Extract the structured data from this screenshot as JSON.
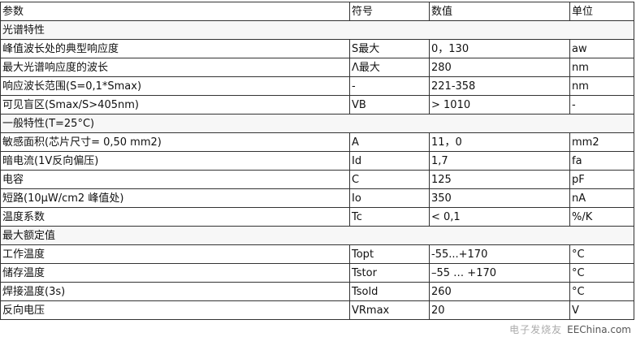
{
  "header": [
    "参数",
    "符号",
    "数值",
    "单位"
  ],
  "rows": [
    {
      "section": "光谱特性"
    },
    {
      "cells": [
        "峰值波长处的典型响应度",
        "S最大",
        "0，130",
        "aw"
      ]
    },
    {
      "cells": [
        "最大光谱响应度的波长",
        "Λ最大",
        "280",
        "nm"
      ]
    },
    {
      "cells": [
        "响应波长范围(S=0,1*Smax)",
        "-",
        "221-358",
        "nm"
      ]
    },
    {
      "cells": [
        "可见盲区(Smax/S>405nm)",
        "VB",
        "> 1010",
        "-"
      ]
    },
    {
      "section": "一般特性(T=25°C)"
    },
    {
      "cells": [
        "敏感面积(芯片尺寸= 0,50 mm2)",
        "A",
        "11，0",
        "mm2"
      ]
    },
    {
      "cells": [
        "暗电流(1V反向偏压)",
        "Id",
        "1,7",
        "fa"
      ]
    },
    {
      "cells": [
        "电容",
        "C",
        "125",
        "pF"
      ]
    },
    {
      "cells": [
        "短路(10μW/cm2 峰值处)",
        "Io",
        "350",
        "nA"
      ]
    },
    {
      "cells": [
        "温度系数",
        "Tc",
        "< 0,1",
        "%/K"
      ]
    },
    {
      "section": "最大额定值"
    },
    {
      "cells": [
        "工作温度",
        "Topt",
        "-55...+170",
        "°C"
      ]
    },
    {
      "cells": [
        "储存温度",
        "Tstor",
        "–55 … +170",
        "°C"
      ]
    },
    {
      "cells": [
        "焊接温度(3s)",
        "Tsold",
        "260",
        "°C"
      ]
    },
    {
      "cells": [
        "反向电压",
        "VRmax",
        "20",
        "V"
      ]
    }
  ],
  "watermark": {
    "cn": "电子发烧友",
    "url": "EEChina.com"
  }
}
